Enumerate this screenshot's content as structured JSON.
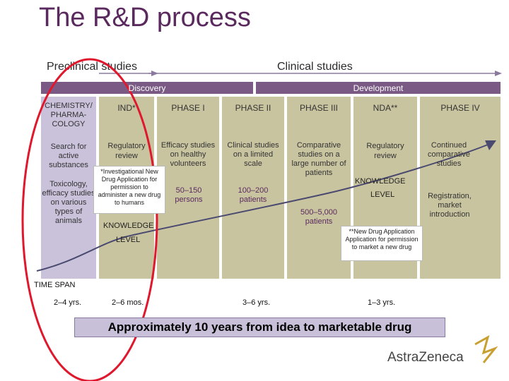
{
  "title": "The R&D process",
  "headers": {
    "preclinical": "Preclinical studies",
    "clinical": "Clinical studies",
    "discovery": "Discovery",
    "development": "Development"
  },
  "columns": [
    {
      "name": "CHEMISTRY/ PHARMA- COLOGY",
      "desc": "Search for active substances",
      "desc2": "Toxicology, efficacy studies on various types of animals",
      "people": ""
    },
    {
      "name": "IND*",
      "desc": "Regulatory review",
      "people": ""
    },
    {
      "name": "PHASE I",
      "desc": "Efficacy studies on healthy volunteers",
      "people": "50–150 persons"
    },
    {
      "name": "PHASE II",
      "desc": "Clinical studies on a limited scale",
      "people": "100–200 patients"
    },
    {
      "name": "PHASE III",
      "desc": "Comparative studies on a large number of patients",
      "people": "500–5,000 patients"
    },
    {
      "name": "NDA**",
      "desc": "Regulatory review",
      "people": ""
    },
    {
      "name": "PHASE IV",
      "desc": "Continued comparative studies",
      "desc2": "Registration, market introduction",
      "people": ""
    }
  ],
  "footnotes": {
    "ind": "*Investigational New Drug Application for permission to administer a new drug to humans",
    "nda": "**New Drug Application Application for permission to market a new drug"
  },
  "knowledge": {
    "left_1": "KNOWLEDGE",
    "left_2": "LEVEL",
    "right_1": "KNOWLEDGE",
    "right_2": "LEVEL"
  },
  "time_span": {
    "label": "TIME SPAN",
    "values": [
      "2–4 yrs.",
      "2–6 mos.",
      "3–6 yrs.",
      "1–3 yrs."
    ]
  },
  "summary": "Approximately 10 years from idea to marketable drug",
  "logo": "AstraZeneca",
  "colors": {
    "col_first": "#c9c2da",
    "col_olive": "#c9c4a0",
    "band": "#7a5a85",
    "title": "#5a2a5e",
    "circle": "#e0182d",
    "curve": "#4a4a70"
  }
}
